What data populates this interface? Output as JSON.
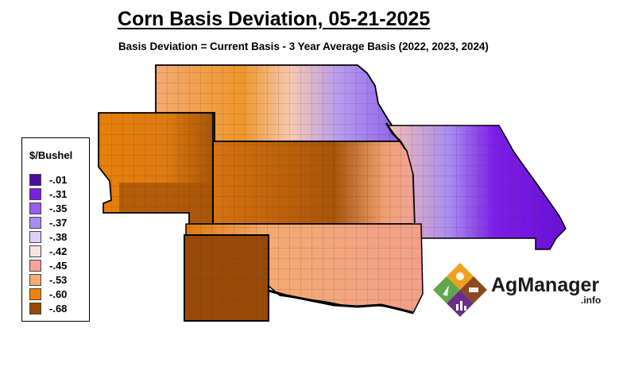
{
  "header": {
    "title": "Corn Basis Deviation, 05-21-2025",
    "subtitle": "Basis Deviation = Current Basis - 3 Year Average Basis (2022, 2023, 2024)"
  },
  "legend": {
    "title": "$/Bushel",
    "items": [
      {
        "label": "-.01",
        "color": "#4b0aa0"
      },
      {
        "label": "-.31",
        "color": "#7d1ee6"
      },
      {
        "label": "-.35",
        "color": "#9b5cf0"
      },
      {
        "label": "-.37",
        "color": "#a98bf2"
      },
      {
        "label": "-.38",
        "color": "#ddd0f5"
      },
      {
        "label": "-.42",
        "color": "#f6e3dc"
      },
      {
        "label": "-.45",
        "color": "#f3a39a"
      },
      {
        "label": "-.53",
        "color": "#f4aa72"
      },
      {
        "label": "-.60",
        "color": "#f0820a"
      },
      {
        "label": "-.68",
        "color": "#9a4a08"
      }
    ]
  },
  "logo": {
    "name": "AgManager",
    "suffix": ".info",
    "colors": {
      "orange": "#f0a020",
      "brown": "#8a4a20",
      "green": "#5fa84a",
      "purple": "#6a2e8a"
    }
  }
}
